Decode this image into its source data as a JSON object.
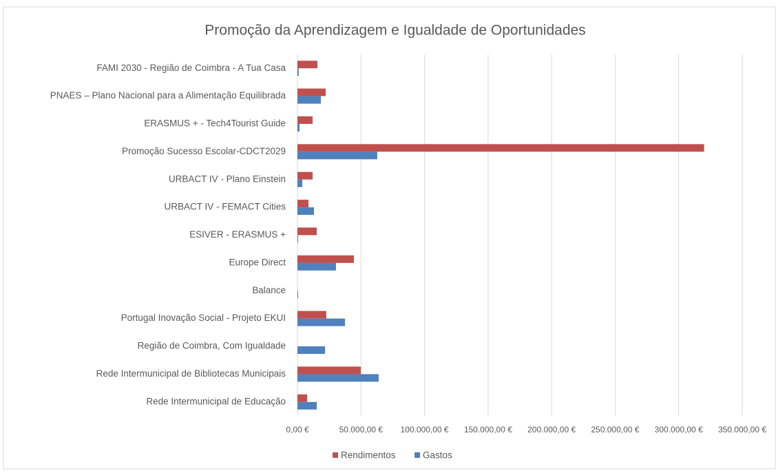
{
  "chart_data": {
    "type": "barh",
    "title": "Promoção da  Aprendizagem e Igualdade de Oportunidades",
    "categories": [
      "FAMI 2030 - Região de Coimbra - A Tua Casa",
      "PNAES – Plano Nacional para a Alimentação Equilibrada",
      "ERASMUS + - Tech4Tourist Guide",
      "Promoção Sucesso Escolar-CDCT2029",
      "URBACT IV - Plano Einstein",
      "URBACT IV - FEMACT Cities",
      "ESIVER - ERASMUS +",
      "Europe Direct",
      "Balance",
      "Portugal Inovação Social - Projeto EKUI",
      "Região de Coimbra, Com Igualdade",
      "Rede Intermunicipal de Bibliotecas Municipais",
      "Rede Intermunicipal de Educação"
    ],
    "series": [
      {
        "name": "Rendimentos",
        "color": "#c0504d",
        "values": [
          15700,
          22200,
          11900,
          320000,
          11900,
          8700,
          15200,
          44400,
          0,
          22700,
          0,
          49800,
          7600
        ]
      },
      {
        "name": "Gastos",
        "color": "#4f81bd",
        "values": [
          1000,
          18400,
          1600,
          62800,
          3800,
          13000,
          500,
          30300,
          500,
          37400,
          21700,
          63900,
          15200
        ]
      }
    ],
    "xlim": [
      0,
      350000
    ],
    "xticks": [
      {
        "value": 0,
        "label": "0,00 €"
      },
      {
        "value": 50000,
        "label": "50.000,00 €"
      },
      {
        "value": 100000,
        "label": "100.000,00 €"
      },
      {
        "value": 150000,
        "label": "150.000,00 €"
      },
      {
        "value": 200000,
        "label": "200.000,00 €"
      },
      {
        "value": 250000,
        "label": "250.000,00 €"
      },
      {
        "value": 300000,
        "label": "300.000,00 €"
      },
      {
        "value": 350000,
        "label": "350.000,00 €"
      }
    ],
    "grid": true,
    "legend": "bottom"
  }
}
